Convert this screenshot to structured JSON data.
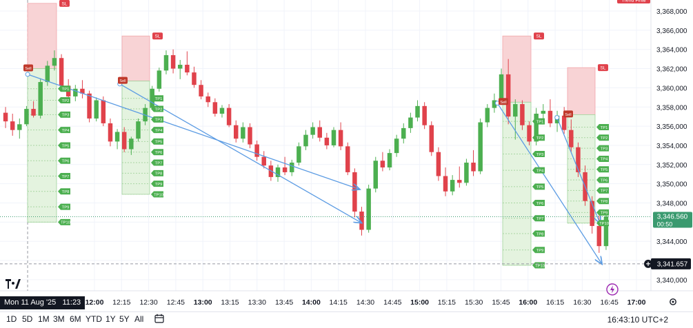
{
  "chart_data": {
    "type": "candlestick",
    "y_ticks": [
      "3,368,000",
      "3,366,000",
      "3,364,000",
      "3,362,000",
      "3,360,000",
      "3,358,000",
      "3,356,000",
      "3,354,000",
      "3,352,000",
      "3,350,000",
      "3,348,000",
      "3,346,000",
      "3,344,000",
      "3,342,000",
      "3,340,000"
    ],
    "y_values": [
      3368,
      3366,
      3364,
      3362,
      3360,
      3358,
      3356,
      3354,
      3352,
      3350,
      3348,
      3346,
      3344,
      3342,
      3340
    ],
    "ylim": [
      3339.3,
      3368.9
    ],
    "x_ticks": [
      "12:00",
      "12:15",
      "12:30",
      "12:45",
      "13:00",
      "13:15",
      "13:30",
      "13:45",
      "14:00",
      "14:15",
      "14:30",
      "14:45",
      "15:00",
      "15:15",
      "15:30",
      "15:45",
      "16:00",
      "16:15",
      "16:30",
      "16:45",
      "17:00"
    ],
    "x_ticks_bold": [
      "12:00",
      "13:00",
      "14:00",
      "15:00",
      "16:00",
      "17:00"
    ],
    "current_price_label": "3,346.560",
    "countdown_label": "00:50",
    "crosshair_price_label": "3,341.657",
    "crosshair_date_label": "Mon 11 Aug '25",
    "crosshair_time_label": "11:23",
    "top_right_label": "Trend Final",
    "colors": {
      "up": "#4caf50",
      "down": "#e0424b",
      "sl_zone": "#f8d3d5",
      "tp_zone": "#e4f3df",
      "arrow": "#5b9be3",
      "current_price": "#3a9a6f"
    },
    "positions": [
      {
        "side_label": "Sell",
        "sl_label": "SL",
        "entry": 3362.0,
        "sl": 3368.8,
        "tps": [
          "TP1",
          "TP2",
          "TP3",
          "TP4",
          "TP5",
          "TP6",
          "TP7",
          "TP8",
          "TP9",
          "TP10"
        ],
        "tp_prices": [
          3359.9,
          3358.7,
          3357.2,
          3355.6,
          3354.0,
          3352.4,
          3350.8,
          3349.2,
          3347.6,
          3346.0
        ]
      },
      {
        "side_label": "Sell",
        "sl_label": "SL",
        "entry": 3360.7,
        "sl": 3365.4,
        "tps": [
          "TP1",
          "TP2",
          "TP3",
          "TP4",
          "TP5",
          "TP6",
          "TP7",
          "TP8",
          "TP9",
          "TP10"
        ],
        "tp_prices": [
          3358.9,
          3357.8,
          3356.7,
          3355.6,
          3354.4,
          3353.3,
          3352.2,
          3351.1,
          3350.0,
          3348.9
        ]
      },
      {
        "side_label": "Sell",
        "sl_label": "SL",
        "entry": 3358.5,
        "sl": 3365.4,
        "tps": [
          "TP1",
          "TP2",
          "TP3",
          "TP4",
          "TP5",
          "TP6",
          "TP7",
          "TP8",
          "TP9",
          "TP10"
        ],
        "tp_prices": [
          3356.5,
          3354.8,
          3353.1,
          3351.4,
          3349.7,
          3348.0,
          3346.4,
          3344.8,
          3343.1,
          3341.5
        ]
      },
      {
        "side_label": "Sell",
        "sl_label": "SL",
        "entry": 3357.2,
        "sl": 3362.1,
        "tps": [
          "TP1",
          "TP2",
          "TP3",
          "TP4",
          "TP5",
          "TP6",
          "TP7",
          "TP8",
          "TP9",
          "TP10"
        ],
        "tp_prices": [
          3355.9,
          3354.8,
          3353.7,
          3352.6,
          3351.5,
          3350.4,
          3349.3,
          3348.2,
          3347.0,
          3345.9
        ]
      }
    ],
    "arrows": [
      {
        "from_time": "11:23",
        "from_price": 3361.4,
        "to_time": "14:27",
        "to_price": 3349.4
      },
      {
        "from_time": "12:14",
        "from_price": 3360.4,
        "to_time": "14:28",
        "to_price": 3345.9
      },
      {
        "from_time": "15:43",
        "from_price": 3358.4,
        "to_time": "16:41",
        "to_price": 3341.6
      },
      {
        "from_time": "16:16",
        "from_price": 3356.9,
        "to_time": "16:40",
        "to_price": 3345.8
      }
    ],
    "candles_ohlc": [
      [
        3357.4,
        3358.0,
        3355.8,
        3356.5
      ],
      [
        3356.5,
        3357.3,
        3355.0,
        3355.6
      ],
      [
        3355.6,
        3356.8,
        3354.7,
        3356.2
      ],
      [
        3356.2,
        3358.1,
        3356.0,
        3357.8
      ],
      [
        3357.8,
        3358.6,
        3356.9,
        3357.1
      ],
      [
        3357.1,
        3361.0,
        3356.8,
        3360.6
      ],
      [
        3360.6,
        3362.8,
        3360.2,
        3362.3
      ],
      [
        3362.3,
        3363.9,
        3361.8,
        3363.1
      ],
      [
        3363.1,
        3363.5,
        3359.8,
        3360.2
      ],
      [
        3360.2,
        3360.9,
        3358.5,
        3359.1
      ],
      [
        3359.1,
        3360.3,
        3358.6,
        3359.9
      ],
      [
        3359.9,
        3360.8,
        3358.9,
        3359.4
      ],
      [
        3359.4,
        3359.7,
        3356.4,
        3356.8
      ],
      [
        3356.8,
        3359.0,
        3356.5,
        3358.7
      ],
      [
        3358.7,
        3359.1,
        3356.0,
        3356.3
      ],
      [
        3356.3,
        3356.8,
        3353.9,
        3354.4
      ],
      [
        3354.4,
        3355.7,
        3353.6,
        3355.4
      ],
      [
        3355.4,
        3355.9,
        3353.3,
        3353.6
      ],
      [
        3353.6,
        3354.9,
        3353.0,
        3354.7
      ],
      [
        3354.7,
        3356.8,
        3354.4,
        3356.5
      ],
      [
        3356.5,
        3358.3,
        3356.1,
        3357.9
      ],
      [
        3357.9,
        3360.2,
        3357.7,
        3359.9
      ],
      [
        3359.9,
        3362.1,
        3359.6,
        3361.8
      ],
      [
        3361.8,
        3363.9,
        3361.4,
        3363.4
      ],
      [
        3363.4,
        3364.0,
        3361.5,
        3362.0
      ],
      [
        3362.0,
        3362.9,
        3360.9,
        3362.4
      ],
      [
        3362.4,
        3363.8,
        3361.3,
        3361.6
      ],
      [
        3361.6,
        3362.2,
        3360.0,
        3360.3
      ],
      [
        3360.3,
        3360.8,
        3358.8,
        3359.1
      ],
      [
        3359.1,
        3359.5,
        3358.0,
        3358.5
      ],
      [
        3358.5,
        3358.9,
        3357.0,
        3357.3
      ],
      [
        3357.3,
        3358.2,
        3356.9,
        3357.9
      ],
      [
        3357.9,
        3358.3,
        3355.9,
        3356.1
      ],
      [
        3356.1,
        3356.6,
        3354.3,
        3354.7
      ],
      [
        3354.7,
        3356.4,
        3354.3,
        3355.9
      ],
      [
        3355.9,
        3356.3,
        3353.7,
        3354.1
      ],
      [
        3354.1,
        3354.5,
        3352.4,
        3352.8
      ],
      [
        3352.8,
        3353.4,
        3351.6,
        3351.9
      ],
      [
        3351.9,
        3352.4,
        3350.3,
        3350.7
      ],
      [
        3350.7,
        3352.0,
        3350.2,
        3351.7
      ],
      [
        3351.7,
        3352.8,
        3350.9,
        3351.2
      ],
      [
        3351.2,
        3352.5,
        3350.8,
        3352.2
      ],
      [
        3352.2,
        3354.3,
        3351.9,
        3353.9
      ],
      [
        3353.9,
        3355.6,
        3353.5,
        3355.1
      ],
      [
        3355.1,
        3356.4,
        3354.7,
        3355.9
      ],
      [
        3355.9,
        3356.6,
        3354.4,
        3354.8
      ],
      [
        3354.8,
        3355.3,
        3353.6,
        3354.0
      ],
      [
        3354.0,
        3355.9,
        3353.8,
        3355.6
      ],
      [
        3355.6,
        3356.4,
        3353.5,
        3353.9
      ],
      [
        3353.9,
        3354.3,
        3350.9,
        3351.2
      ],
      [
        3351.2,
        3351.6,
        3346.5,
        3347.1
      ],
      [
        3347.1,
        3347.6,
        3344.6,
        3345.2
      ],
      [
        3345.2,
        3349.9,
        3344.9,
        3349.5
      ],
      [
        3349.5,
        3352.8,
        3349.1,
        3352.4
      ],
      [
        3352.4,
        3353.3,
        3351.3,
        3351.7
      ],
      [
        3351.7,
        3353.6,
        3351.4,
        3353.2
      ],
      [
        3353.2,
        3355.1,
        3352.8,
        3354.7
      ],
      [
        3354.7,
        3356.3,
        3354.2,
        3355.8
      ],
      [
        3355.8,
        3357.4,
        3355.3,
        3356.9
      ],
      [
        3356.9,
        3358.7,
        3356.5,
        3358.1
      ],
      [
        3358.1,
        3358.5,
        3355.7,
        3356.1
      ],
      [
        3356.1,
        3356.5,
        3352.9,
        3353.3
      ],
      [
        3353.3,
        3353.8,
        3350.3,
        3350.8
      ],
      [
        3350.8,
        3351.7,
        3348.7,
        3349.2
      ],
      [
        3349.2,
        3350.9,
        3348.8,
        3350.4
      ],
      [
        3350.4,
        3351.8,
        3349.6,
        3350.1
      ],
      [
        3350.1,
        3352.6,
        3349.8,
        3352.2
      ],
      [
        3352.2,
        3353.5,
        3350.8,
        3351.3
      ],
      [
        3351.3,
        3356.8,
        3351.0,
        3356.4
      ],
      [
        3356.4,
        3358.3,
        3355.9,
        3357.9
      ],
      [
        3357.9,
        3359.4,
        3357.4,
        3358.7
      ],
      [
        3358.7,
        3362.0,
        3358.3,
        3361.4
      ],
      [
        3361.4,
        3363.0,
        3356.2,
        3357.0
      ],
      [
        3357.0,
        3358.8,
        3354.6,
        3358.3
      ],
      [
        3358.3,
        3358.7,
        3355.6,
        3356.1
      ],
      [
        3356.1,
        3356.5,
        3354.0,
        3354.4
      ],
      [
        3354.4,
        3357.9,
        3354.0,
        3357.3
      ],
      [
        3357.3,
        3358.3,
        3356.6,
        3357.6
      ],
      [
        3357.6,
        3358.8,
        3355.9,
        3356.3
      ],
      [
        3356.3,
        3357.6,
        3355.4,
        3357.1
      ],
      [
        3357.1,
        3358.0,
        3355.2,
        3355.6
      ],
      [
        3355.6,
        3356.7,
        3353.3,
        3353.8
      ],
      [
        3353.8,
        3354.3,
        3350.7,
        3351.2
      ],
      [
        3351.2,
        3351.9,
        3347.7,
        3348.2
      ],
      [
        3348.2,
        3348.7,
        3344.8,
        3345.6
      ],
      [
        3345.6,
        3346.7,
        3342.8,
        3343.5
      ],
      [
        3343.5,
        3346.9,
        3343.1,
        3346.6
      ]
    ]
  },
  "bottom_bar": {
    "ranges": [
      "1D",
      "5D",
      "1M",
      "3M",
      "6M",
      "YTD",
      "1Y",
      "5Y",
      "All"
    ],
    "clock": "16:43:10 UTC+2"
  },
  "icons": {
    "logo": "tradingview-logo-icon",
    "calendar": "calendar-range-icon",
    "settings": "gear-icon",
    "crosshair": "plus-circle-icon",
    "alert": "lightning-icon"
  }
}
